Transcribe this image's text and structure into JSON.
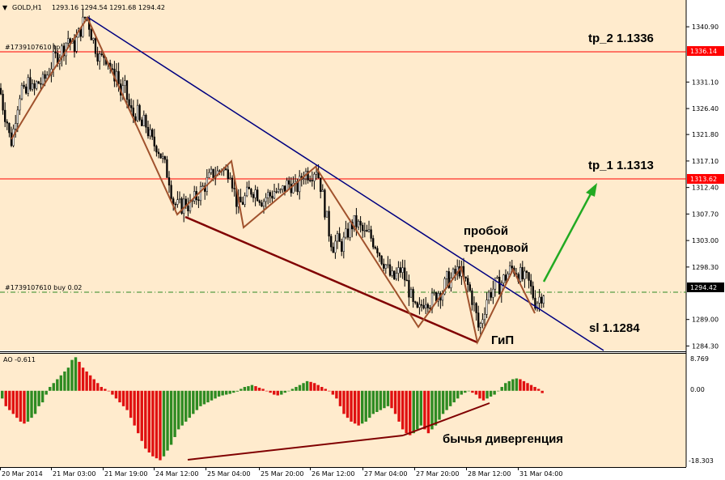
{
  "header": {
    "symbol": "GOLD,H1",
    "ohlc": "1293.16 1294.54 1291.68 1294.42"
  },
  "price_scale": {
    "ticks": [
      "1340.90",
      "1336.14",
      "1331.10",
      "1326.40",
      "1321.80",
      "1317.10",
      "1312.40",
      "1307.70",
      "1303.00",
      "1298.30",
      "1294.42",
      "1289.00",
      "1284.30"
    ],
    "min": 1283.5,
    "max": 1344.5
  },
  "time_axis": {
    "labels": [
      "20 Mar 2014",
      "21 Mar 03:00",
      "21 Mar 19:00",
      "24 Mar 12:00",
      "25 Mar 04:00",
      "25 Mar 20:00",
      "26 Mar 12:00",
      "27 Mar 04:00",
      "27 Mar 20:00",
      "28 Mar 12:00",
      "31 Mar 04:00"
    ]
  },
  "order_lines": {
    "tp_label": "#1739107610 tp",
    "buy_label": "#1739107610 buy 0.02"
  },
  "price_tags": {
    "tp2": "1336.14",
    "tp1": "1313.62",
    "current": "1294.42"
  },
  "annotations": {
    "tp2": "tp_2 1.1336",
    "tp1": "tp_1 1.1313",
    "breakout_line1": "пробой",
    "breakout_line2": "трендовой",
    "sl": "sl 1.1284",
    "pattern": "ГиП",
    "divergence": "бычья дивергенция"
  },
  "indicator": {
    "name": "AO -0.611",
    "ticks": [
      "8.769",
      "0.00",
      "-18.303"
    ]
  },
  "colors": {
    "background": "#ffebcd",
    "bull": "#2e8b22",
    "bear": "#e01010",
    "tp_line": "#ff0000",
    "trendline": "#000080",
    "zigzag": "#a0522d",
    "support": "#800000",
    "arrow": "#22aa22"
  },
  "chart_data": {
    "type": "candlestick",
    "series_name": "GOLD,H1",
    "x_categories": [
      "20 Mar 2014",
      "21 Mar 03:00",
      "21 Mar 19:00",
      "24 Mar 12:00",
      "25 Mar 04:00",
      "25 Mar 20:00",
      "26 Mar 12:00",
      "27 Mar 04:00",
      "27 Mar 20:00",
      "28 Mar 12:00",
      "31 Mar 04:00"
    ],
    "ylim": [
      1284.3,
      1344.5
    ],
    "price_path": [
      [
        0,
        1330
      ],
      [
        2,
        1328
      ],
      [
        5,
        1326
      ],
      [
        9,
        1324
      ],
      [
        13,
        1320
      ],
      [
        16,
        1322
      ],
      [
        20,
        1326
      ],
      [
        24,
        1329
      ],
      [
        27,
        1330
      ],
      [
        31,
        1328
      ],
      [
        36,
        1332
      ],
      [
        41,
        1329
      ],
      [
        46,
        1331
      ],
      [
        53,
        1331
      ],
      [
        60,
        1333
      ],
      [
        66,
        1335
      ],
      [
        72,
        1336
      ],
      [
        78,
        1337
      ],
      [
        84,
        1339
      ],
      [
        90,
        1337
      ],
      [
        96,
        1339
      ],
      [
        101,
        1341
      ],
      [
        106,
        1343
      ],
      [
        109,
        1342
      ],
      [
        114,
        1339
      ],
      [
        119,
        1337
      ],
      [
        124,
        1335
      ],
      [
        129,
        1336
      ],
      [
        134,
        1335
      ],
      [
        139,
        1332
      ],
      [
        144,
        1333
      ],
      [
        149,
        1329
      ],
      [
        154,
        1330
      ],
      [
        159,
        1327
      ],
      [
        164,
        1325
      ],
      [
        169,
        1326
      ],
      [
        174,
        1323
      ],
      [
        179,
        1324
      ],
      [
        184,
        1322
      ],
      [
        189,
        1320
      ],
      [
        194,
        1320
      ],
      [
        199,
        1318
      ],
      [
        204,
        1316
      ],
      [
        209,
        1314
      ],
      [
        214,
        1310
      ],
      [
        219,
        1309
      ],
      [
        224,
        1309
      ],
      [
        229,
        1310
      ],
      [
        234,
        1309
      ],
      [
        239,
        1310
      ],
      [
        244,
        1311
      ],
      [
        249,
        1312
      ],
      [
        254,
        1313
      ],
      [
        259,
        1314
      ],
      [
        264,
        1315
      ],
      [
        269,
        1315
      ],
      [
        274,
        1316
      ],
      [
        279,
        1315
      ],
      [
        284,
        1316
      ],
      [
        289,
        1312
      ],
      [
        294,
        1309
      ],
      [
        300,
        1310
      ],
      [
        305,
        1311
      ],
      [
        310,
        1312
      ],
      [
        315,
        1312
      ],
      [
        320,
        1311
      ],
      [
        325,
        1310
      ],
      [
        330,
        1311
      ],
      [
        335,
        1311
      ],
      [
        340,
        1312
      ],
      [
        345,
        1311
      ],
      [
        350,
        1312
      ],
      [
        355,
        1313
      ],
      [
        360,
        1313
      ],
      [
        365,
        1312
      ],
      [
        370,
        1313
      ],
      [
        375,
        1315
      ],
      [
        380,
        1315
      ],
      [
        385,
        1315
      ],
      [
        391,
        1316
      ],
      [
        396,
        1313
      ],
      [
        401,
        1309
      ],
      [
        406,
        1305
      ],
      [
        411,
        1302
      ],
      [
        416,
        1303
      ],
      [
        421,
        1302
      ],
      [
        426,
        1303
      ],
      [
        431,
        1305
      ],
      [
        436,
        1306
      ],
      [
        441,
        1306
      ],
      [
        446,
        1305
      ],
      [
        451,
        1304
      ],
      [
        456,
        1304
      ],
      [
        461,
        1303
      ],
      [
        466,
        1302
      ],
      [
        471,
        1300
      ],
      [
        476,
        1299
      ],
      [
        481,
        1297
      ],
      [
        486,
        1296
      ],
      [
        491,
        1297
      ],
      [
        496,
        1298
      ],
      [
        501,
        1296
      ],
      [
        506,
        1294
      ],
      [
        511,
        1291
      ],
      [
        517,
        1290
      ],
      [
        522,
        1292
      ],
      [
        527,
        1293
      ],
      [
        532,
        1292
      ],
      [
        537,
        1293
      ],
      [
        542,
        1294
      ],
      [
        547,
        1294
      ],
      [
        552,
        1296
      ],
      [
        557,
        1296
      ],
      [
        562,
        1297
      ],
      [
        568,
        1298
      ],
      [
        573,
        1296
      ],
      [
        578,
        1295
      ],
      [
        583,
        1293
      ],
      [
        588,
        1290
      ],
      [
        592,
        1287
      ],
      [
        597,
        1290
      ],
      [
        602,
        1293
      ],
      [
        607,
        1294
      ],
      [
        612,
        1295
      ],
      [
        617,
        1295
      ],
      [
        622,
        1296
      ],
      [
        627,
        1297
      ],
      [
        632,
        1298
      ],
      [
        637,
        1298
      ],
      [
        642,
        1297
      ],
      [
        647,
        1296
      ],
      [
        652,
        1296
      ],
      [
        657,
        1294
      ],
      [
        662,
        1292
      ],
      [
        667,
        1293
      ],
      [
        672,
        1294
      ]
    ],
    "trendline": {
      "from": [
        "21 Mar 03:00",
        1342.5
      ],
      "to": [
        "31 Mar 04:00",
        1284.3
      ]
    },
    "support_line": {
      "from": [
        "24 Mar 12:00",
        1306.5
      ],
      "to": [
        "28 Mar 12:00",
        1286.5
      ]
    },
    "zigzag_points": [
      1321,
      1336,
      1343,
      1309,
      1317,
      1305,
      1317,
      1290,
      1298,
      1287,
      1298,
      1292
    ],
    "horizontal_levels": [
      {
        "price": 1336.14,
        "label": "tp_2 1.1336"
      },
      {
        "price": 1313.62,
        "label": "tp_1 1.1313"
      },
      {
        "price": 1294.42,
        "label": "#1739107610 buy 0.02"
      }
    ],
    "awesome_oscillator": {
      "name": "AO",
      "last": -0.611,
      "ylim": [
        -18.303,
        8.769
      ],
      "values": [
        -2,
        -4,
        -5,
        -6,
        -7,
        -8,
        -8.5,
        -8,
        -7,
        -6,
        -4,
        -3,
        -1,
        1,
        2,
        3,
        4,
        5,
        6,
        8,
        8.7,
        7.5,
        6,
        5,
        4,
        3,
        2,
        1,
        0.5,
        0,
        -1,
        -2,
        -3,
        -4,
        -5,
        -7,
        -9,
        -11,
        -13,
        -15,
        -16,
        -17,
        -17.5,
        -18,
        -17,
        -15.5,
        -14,
        -12,
        -10,
        -9,
        -8,
        -7,
        -6,
        -5,
        -4,
        -3.5,
        -3,
        -2.5,
        -2,
        -1.5,
        -1.2,
        -1,
        -0.8,
        -0.5,
        -0.2,
        0.5,
        1,
        1.2,
        1.5,
        1.2,
        0.8,
        0.5,
        0,
        -0.5,
        -1,
        -1.2,
        -1,
        -0.5,
        0,
        0.5,
        1,
        1.5,
        2,
        2.5,
        2.3,
        2,
        1.5,
        1,
        0.5,
        0,
        -1,
        -2,
        -4,
        -6,
        -7,
        -8,
        -8.5,
        -9,
        -8.5,
        -8,
        -7,
        -6,
        -5.5,
        -5,
        -4.5,
        -4,
        -4.5,
        -6,
        -8,
        -10,
        -11,
        -11.5,
        -11,
        -10,
        -9,
        -10,
        -11,
        -10,
        -9,
        -7.5,
        -6,
        -5,
        -4,
        -3,
        -2,
        -1,
        -0.5,
        0,
        -0.5,
        -1,
        -2,
        -2.5,
        -2,
        -1.5,
        -1,
        0,
        1,
        2,
        2.5,
        3,
        3.2,
        3,
        2.5,
        2,
        1.5,
        1,
        0.5,
        -0.6
      ]
    }
  }
}
